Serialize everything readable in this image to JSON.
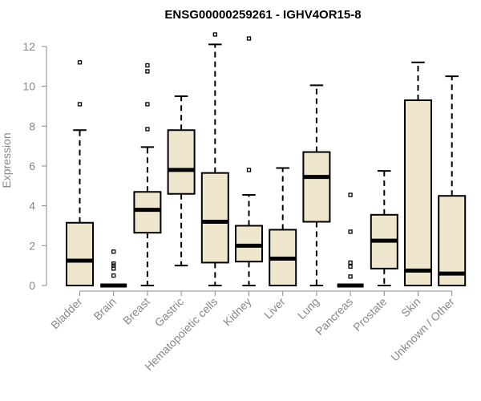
{
  "chart_data": {
    "type": "boxplot",
    "title": "ENSG00000259261 - IGHV4OR15-8",
    "xlabel": "",
    "ylabel": "Expression",
    "ylim": [
      0,
      12.5
    ],
    "yticks": [
      0,
      2,
      4,
      6,
      8,
      10,
      12
    ],
    "box_fill": "#efe7cd",
    "line_color": "#000000",
    "axis_color": "#888888",
    "categories": [
      "Bladder",
      "Brain",
      "Breast",
      "Gastric",
      "Hematopoietic cells",
      "Kidney",
      "Liver",
      "Lung",
      "Pancreas",
      "Prostate",
      "Skin",
      "Unknown / Other"
    ],
    "boxes": [
      {
        "category": "Bladder",
        "whisker_low": 0,
        "q1": 0,
        "median": 1.25,
        "q3": 3.15,
        "whisker_high": 7.8,
        "outliers": [
          9.1,
          11.2
        ]
      },
      {
        "category": "Brain",
        "whisker_low": 0,
        "q1": 0,
        "median": 0,
        "q3": 0,
        "whisker_high": 0,
        "outliers": [
          0.5,
          0.85,
          1.0,
          1.1,
          1.7
        ]
      },
      {
        "category": "Breast",
        "whisker_low": 0,
        "q1": 2.65,
        "median": 3.8,
        "q3": 4.7,
        "whisker_high": 6.95,
        "outliers": [
          7.85,
          9.1,
          10.75,
          11.05
        ]
      },
      {
        "category": "Gastric",
        "whisker_low": 1.0,
        "q1": 4.6,
        "median": 5.8,
        "q3": 7.8,
        "whisker_high": 9.5,
        "outliers": []
      },
      {
        "category": "Hematopoietic cells",
        "whisker_low": 0,
        "q1": 1.15,
        "median": 3.2,
        "q3": 5.65,
        "whisker_high": 12.1,
        "outliers": [
          12.6
        ]
      },
      {
        "category": "Kidney",
        "whisker_low": 0,
        "q1": 1.2,
        "median": 2.0,
        "q3": 3.0,
        "whisker_high": 4.55,
        "outliers": [
          5.8,
          12.4
        ]
      },
      {
        "category": "Liver",
        "whisker_low": 0,
        "q1": 0,
        "median": 1.35,
        "q3": 2.8,
        "whisker_high": 5.9,
        "outliers": []
      },
      {
        "category": "Lung",
        "whisker_low": 0,
        "q1": 3.2,
        "median": 5.45,
        "q3": 6.7,
        "whisker_high": 10.05,
        "outliers": []
      },
      {
        "category": "Pancreas",
        "whisker_low": 0,
        "q1": 0,
        "median": 0,
        "q3": 0,
        "whisker_high": 0,
        "outliers": [
          0.45,
          0.95,
          1.15,
          2.7,
          4.55
        ]
      },
      {
        "category": "Prostate",
        "whisker_low": 0,
        "q1": 0.85,
        "median": 2.25,
        "q3": 3.55,
        "whisker_high": 5.75,
        "outliers": []
      },
      {
        "category": "Skin",
        "whisker_low": 0,
        "q1": 0,
        "median": 0.75,
        "q3": 9.3,
        "whisker_high": 11.2,
        "outliers": []
      },
      {
        "category": "Unknown / Other",
        "whisker_low": 0,
        "q1": 0,
        "median": 0.6,
        "q3": 4.5,
        "whisker_high": 10.5,
        "outliers": []
      }
    ]
  }
}
